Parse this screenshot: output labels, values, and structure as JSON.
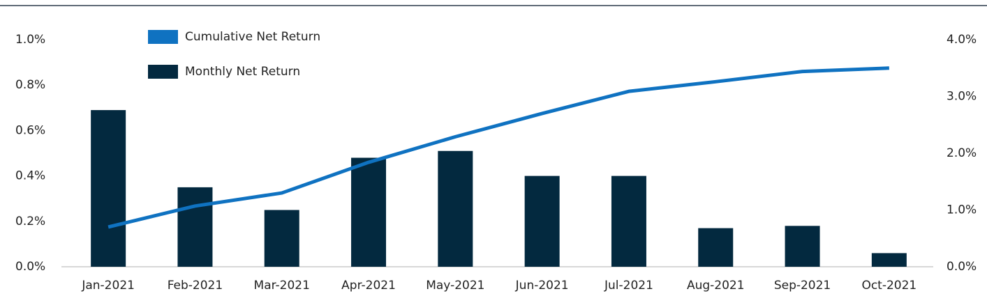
{
  "chart_data": {
    "type": "bar-line",
    "categories": [
      "Jan-2021",
      "Feb-2021",
      "Mar-2021",
      "Apr-2021",
      "May-2021",
      "Jun-2021",
      "Jul-2021",
      "Aug-2021",
      "Sep-2021",
      "Oct-2021"
    ],
    "series": [
      {
        "name": "Cumulative Net Return",
        "color": "#0f72c1",
        "type": "line",
        "axis": "y2",
        "values": [
          0.7,
          1.07,
          1.3,
          1.84,
          2.29,
          2.7,
          3.09,
          3.26,
          3.44,
          3.5
        ]
      },
      {
        "name": "Monthly Net Return",
        "color": "#03293f",
        "type": "bar",
        "values": [
          0.69,
          0.35,
          0.25,
          0.48,
          0.51,
          0.4,
          0.4,
          0.17,
          0.18,
          0.06
        ]
      }
    ],
    "ylim": [
      0,
      1.0
    ],
    "yticks": [
      {
        "value": 0,
        "label": "0.0%"
      },
      {
        "value": 0.2,
        "label": "0.2%"
      },
      {
        "value": 0.4,
        "label": "0.4%"
      },
      {
        "value": 0.6,
        "label": "0.6%"
      },
      {
        "value": 0.8,
        "label": "0.8%"
      },
      {
        "value": 1.0,
        "label": "1.0%"
      }
    ],
    "y2lim": [
      0,
      4.0
    ],
    "y2ticks": [
      {
        "value": 0,
        "label": "0.0%"
      },
      {
        "value": 1.0,
        "label": "1.0%"
      },
      {
        "value": 2.0,
        "label": "2.0%"
      },
      {
        "value": 3.0,
        "label": "3.0%"
      },
      {
        "value": 4.0,
        "label": "4.0%"
      }
    ],
    "legend": "top-left"
  }
}
